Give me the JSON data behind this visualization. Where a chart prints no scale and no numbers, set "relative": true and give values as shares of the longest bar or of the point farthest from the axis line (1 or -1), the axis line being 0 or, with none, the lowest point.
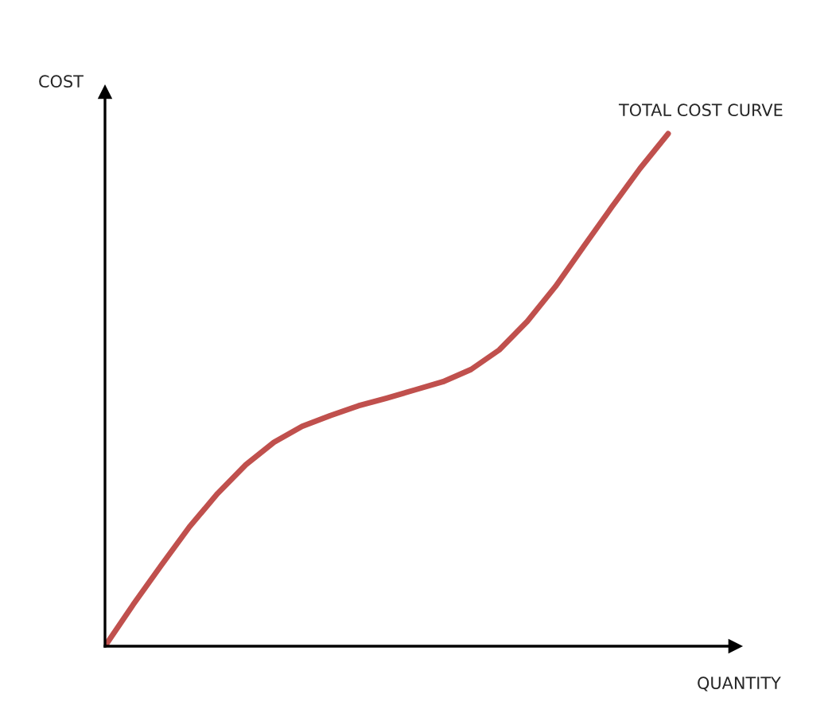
{
  "chart_data": {
    "type": "line",
    "relative": true,
    "xlabel": "QUANTITY",
    "ylabel": "COST",
    "annotations": [
      "TOTAL COST CURVE"
    ],
    "categories": [
      null,
      null,
      null,
      null,
      null,
      null,
      null,
      null,
      null,
      null,
      null,
      null,
      null,
      null,
      null,
      null,
      null,
      null,
      null,
      null,
      null
    ],
    "series": [
      {
        "color": "#c0504d",
        "values": [
          0,
          0.081,
          0.158,
          0.233,
          0.298,
          0.354,
          0.398,
          0.429,
          0.45,
          0.469,
          0.484,
          0.5,
          0.516,
          0.54,
          0.578,
          0.634,
          0.702,
          0.78,
          0.857,
          0.932,
          1.0
        ]
      }
    ]
  }
}
